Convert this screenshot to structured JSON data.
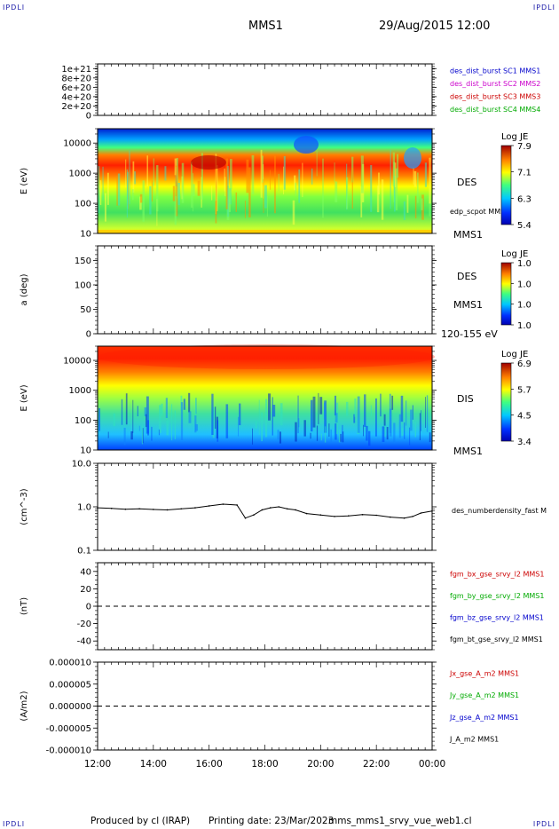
{
  "header": {
    "logo_text": "IPDLI",
    "spacecraft": "MMS1",
    "datetime": "29/Aug/2015 12:00"
  },
  "footer": {
    "produced_by": "Produced by cl (IRAP)",
    "printing_date": "Printing date: 23/Mar/2023",
    "filename": "mms_mms1_srvy_vue_web1.cl"
  },
  "colors": {
    "sc1": "#0000cc",
    "sc2": "#cc00cc",
    "sc3": "#cc0000",
    "sc4": "#00aa00",
    "bx": "#cc0000",
    "by": "#00aa00",
    "bz": "#0000cc",
    "bt": "#000000",
    "trace": "#000000"
  },
  "x_axis": {
    "ticks": [
      "12:00",
      "14:00",
      "16:00",
      "18:00",
      "20:00",
      "22:00",
      "00:00"
    ]
  },
  "chart_data": [
    {
      "type": "line",
      "ylim": [
        0,
        1.1e+21
      ],
      "yticks": [
        "0",
        "2e+20",
        "4e+20",
        "6e+20",
        "8e+20",
        "1e+21"
      ],
      "series": [
        {
          "name": "des_dist_burst SC1 MMS1",
          "color_key": "sc1"
        },
        {
          "name": "des_dist_burst SC2 MMS2",
          "color_key": "sc2"
        },
        {
          "name": "des_dist_burst SC3 MMS3",
          "color_key": "sc3"
        },
        {
          "name": "des_dist_burst SC4 MMS4",
          "color_key": "sc4"
        }
      ],
      "zero_line": true
    },
    {
      "type": "heatmap",
      "ylabel": "E (eV)",
      "yticks": [
        "10",
        "100",
        "1000",
        "10000"
      ],
      "ylim": [
        10,
        30000
      ],
      "log_y": true,
      "species": "DES",
      "side_labels": [
        "edp_scpot MMS1",
        "MMS1"
      ],
      "colorbar": {
        "title": "Log JE",
        "max": "7.9",
        "mid1": "7.1",
        "mid2": "6.3",
        "min": "5.4"
      }
    },
    {
      "type": "heatmap",
      "ylabel": "a (deg)",
      "yticks": [
        "0",
        "50",
        "100",
        "150"
      ],
      "ylim": [
        0,
        180
      ],
      "species": "DES",
      "side_labels": [
        "MMS1",
        "120-155 eV"
      ],
      "colorbar": {
        "title": "Log JE",
        "max": "1.0",
        "mid1": "1.0",
        "mid2": "1.0",
        "min": "1.0"
      }
    },
    {
      "type": "heatmap",
      "ylabel": "E (eV)",
      "yticks": [
        "10",
        "100",
        "1000",
        "10000"
      ],
      "ylim": [
        10,
        30000
      ],
      "log_y": true,
      "species": "DIS",
      "side_labels": [
        "MMS1"
      ],
      "colorbar": {
        "title": "Log JE",
        "max": "6.9",
        "mid1": "5.7",
        "mid2": "4.5",
        "min": "3.4"
      }
    },
    {
      "type": "line",
      "ylabel": "(cm^-3)",
      "yticks": [
        "0.1",
        "1.0",
        "10.0"
      ],
      "ylim": [
        0.1,
        10
      ],
      "log_y": true,
      "series": [
        {
          "name": "des_numberdensity_fast M",
          "color_key": "trace",
          "x": [
            12.0,
            12.5,
            13.0,
            13.5,
            14.0,
            14.5,
            15.0,
            15.5,
            16.0,
            16.5,
            17.0,
            17.3,
            17.6,
            17.9,
            18.2,
            18.5,
            18.8,
            19.1,
            19.5,
            20.0,
            20.5,
            21.0,
            21.5,
            22.0,
            22.5,
            23.0,
            23.3,
            23.6,
            24.0
          ],
          "values": [
            0.95,
            0.92,
            0.88,
            0.9,
            0.87,
            0.85,
            0.9,
            0.95,
            1.05,
            1.15,
            1.1,
            0.55,
            0.65,
            0.85,
            0.95,
            1.0,
            0.9,
            0.85,
            0.7,
            0.65,
            0.6,
            0.62,
            0.66,
            0.64,
            0.58,
            0.55,
            0.6,
            0.72,
            0.8
          ]
        }
      ]
    },
    {
      "type": "line",
      "ylabel": "(nT)",
      "yticks": [
        "-40",
        "-20",
        "0",
        "20",
        "40"
      ],
      "ylim": [
        -50,
        50
      ],
      "zero_line": true,
      "series": [
        {
          "name": "fgm_bx_gse_srvy_l2 MMS1",
          "color_key": "bx"
        },
        {
          "name": "fgm_by_gse_srvy_l2 MMS1",
          "color_key": "by"
        },
        {
          "name": "fgm_bz_gse_srvy_l2 MMS1",
          "color_key": "bz"
        },
        {
          "name": "fgm_bt_gse_srvy_l2 MMS1",
          "color_key": "bt"
        }
      ]
    },
    {
      "type": "line",
      "ylabel": "(A/m2)",
      "yticks": [
        "-0.000010",
        "-0.000005",
        "0.000000",
        "0.000005",
        "0.000010"
      ],
      "ylim": [
        -1e-05,
        1e-05
      ],
      "zero_line": true,
      "series": [
        {
          "name": "Jx_gse_A_m2 MMS1",
          "color_key": "bx"
        },
        {
          "name": "Jy_gse_A_m2 MMS1",
          "color_key": "by"
        },
        {
          "name": "Jz_gse_A_m2 MMS1",
          "color_key": "bz"
        },
        {
          "name": "J_A_m2 MMS1",
          "color_key": "bt"
        }
      ]
    }
  ]
}
